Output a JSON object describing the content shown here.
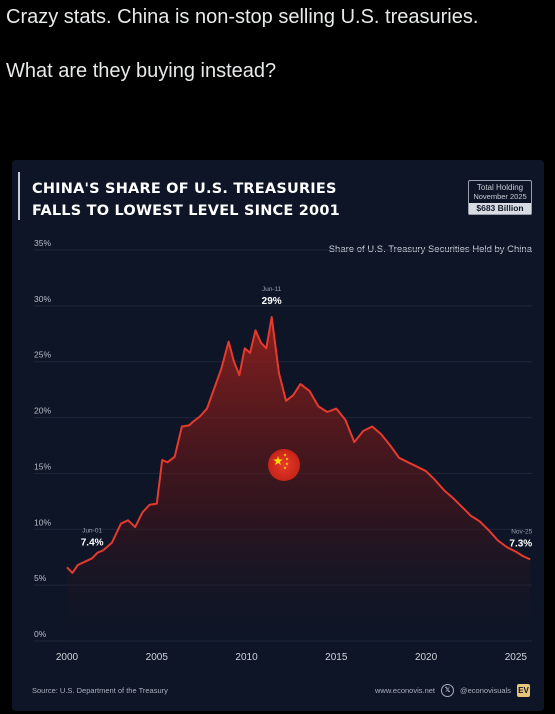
{
  "post": {
    "line1": "Crazy stats. China is non-stop selling U.S. treasuries.",
    "line2": "What are they buying instead?"
  },
  "colors": {
    "line": "#e63a2e",
    "accent": "#e8c77a",
    "background": "#0e1526"
  },
  "card": {
    "source": "Source: U.S. Department of the Treasury",
    "website": "www.econovis.net",
    "handle": "@econovisuals",
    "logo_text": "EV",
    "x_icon": "x-logo-icon",
    "flag_icon": "china-flag-icon"
  },
  "chart_data": {
    "type": "line",
    "title_line1": "CHINA'S SHARE OF U.S. TREASURIES",
    "title_line2": "FALLS TO LOWEST LEVEL SINCE 2001",
    "holding_label": "Total Holding",
    "holding_date": "November 2025",
    "holding_amount": "$683 Billion",
    "series_name": "Share of U.S. Treasury Securities Held by China",
    "xlim": [
      2000,
      2025.9
    ],
    "ylim": [
      0,
      35
    ],
    "y_ticks": [
      0,
      5,
      10,
      15,
      20,
      25,
      30,
      35
    ],
    "y_tick_labels": [
      "0%",
      "5%",
      "10%",
      "15%",
      "20%",
      "25%",
      "30%",
      "35%"
    ],
    "x_ticks": [
      2000,
      2005,
      2010,
      2015,
      2020,
      2025
    ],
    "x_tick_labels": [
      "2000",
      "2005",
      "2010",
      "2015",
      "2020",
      "2025"
    ],
    "annotations": [
      {
        "date": "Jun-01",
        "value": "7.4%",
        "x": 2001.4,
        "y": 7.4
      },
      {
        "date": "Jun-11",
        "value": "29%",
        "x": 2011.4,
        "y": 29
      },
      {
        "date": "Nov-25",
        "value": "7.3%",
        "x": 2025.8,
        "y": 7.3
      }
    ],
    "x": [
      2000.0,
      2000.3,
      2000.6,
      2001.0,
      2001.4,
      2001.7,
      2002.0,
      2002.5,
      2003.0,
      2003.4,
      2003.8,
      2004.2,
      2004.6,
      2005.0,
      2005.3,
      2005.6,
      2006.0,
      2006.4,
      2006.8,
      2007.0,
      2007.4,
      2007.8,
      2008.2,
      2008.6,
      2009.0,
      2009.3,
      2009.6,
      2009.9,
      2010.2,
      2010.5,
      2010.8,
      2011.1,
      2011.4,
      2011.8,
      2012.2,
      2012.6,
      2013.0,
      2013.5,
      2014.0,
      2014.5,
      2015.0,
      2015.5,
      2016.0,
      2016.5,
      2017.0,
      2017.5,
      2018.0,
      2018.5,
      2019.0,
      2019.5,
      2020.0,
      2020.5,
      2021.0,
      2021.5,
      2022.0,
      2022.5,
      2023.0,
      2023.5,
      2024.0,
      2024.5,
      2025.0,
      2025.4,
      2025.8
    ],
    "y": [
      6.6,
      6.1,
      6.8,
      7.1,
      7.4,
      7.9,
      8.1,
      8.8,
      10.5,
      10.8,
      10.2,
      11.5,
      12.2,
      12.3,
      16.2,
      16.0,
      16.5,
      19.2,
      19.3,
      19.6,
      20.1,
      20.8,
      22.6,
      24.4,
      26.8,
      25.0,
      23.8,
      26.2,
      25.8,
      27.8,
      26.7,
      26.2,
      29.0,
      24.0,
      21.5,
      22.0,
      23.0,
      22.4,
      21.0,
      20.5,
      20.8,
      19.8,
      17.8,
      18.8,
      19.2,
      18.5,
      17.5,
      16.4,
      16.0,
      15.6,
      15.2,
      14.4,
      13.5,
      12.8,
      12.0,
      11.2,
      10.7,
      9.9,
      9.0,
      8.4,
      8.0,
      7.6,
      7.3
    ]
  }
}
